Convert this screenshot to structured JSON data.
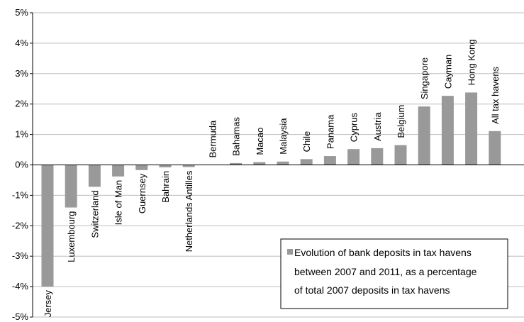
{
  "chart_data": {
    "type": "bar",
    "title": "",
    "xlabel": "",
    "ylabel": "",
    "ylim": [
      -5,
      5
    ],
    "yticks": [
      -5,
      -4,
      -3,
      -2,
      -1,
      0,
      1,
      2,
      3,
      4,
      5
    ],
    "ytick_labels": [
      "-5%",
      "-4%",
      "-3%",
      "-2%",
      "-1%",
      "0%",
      "1%",
      "2%",
      "3%",
      "4%",
      "5%"
    ],
    "grid": "horizontal",
    "legend_position": "bottom-right",
    "bar_color": "#999999",
    "categories": [
      "Jersey",
      "Luxembourg",
      "Switzerland",
      "Isle of Man",
      "Guernsey",
      "Bahrain",
      "Netherlands Antilles",
      "Bermuda",
      "Bahamas",
      "Macao",
      "Malaysia",
      "Chile",
      "Panama",
      "Cyprus",
      "Austria",
      "Belgium",
      "Singapore",
      "Cayman",
      "Hong Kong",
      "All tax havens"
    ],
    "series": [
      {
        "name": "Evolution of bank deposits in tax havens between 2007 and 2011, as a percentage of total 2007 deposits in tax havens",
        "legend_lines": [
          "Evolution of bank deposits in tax havens",
          "between 2007 and 2011, as a percentage",
          "of total 2007 deposits in tax havens"
        ],
        "values": [
          -4.0,
          -1.4,
          -0.72,
          -0.38,
          -0.17,
          -0.08,
          -0.07,
          0.0,
          0.06,
          0.09,
          0.11,
          0.19,
          0.29,
          0.52,
          0.55,
          0.65,
          1.92,
          2.27,
          2.38,
          1.11
        ]
      }
    ]
  }
}
